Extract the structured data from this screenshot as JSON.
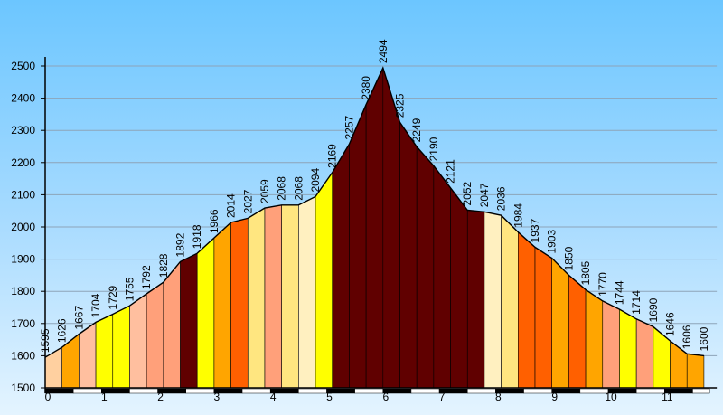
{
  "chart_data": {
    "type": "area",
    "title": "",
    "xlabel": "",
    "ylabel": "",
    "xlim": [
      0,
      11.8
    ],
    "ylim": [
      1500,
      2500
    ],
    "y_ticks": [
      1500,
      1600,
      1700,
      1800,
      1900,
      2000,
      2100,
      2200,
      2300,
      2400,
      2500
    ],
    "x_ticks": [
      0,
      1,
      2,
      3,
      4,
      5,
      6,
      7,
      8,
      9,
      10,
      11
    ],
    "grid": true,
    "series": [
      {
        "x": [
          0,
          0.3,
          0.6,
          0.9,
          1.2,
          1.5,
          1.8,
          2.1,
          2.4,
          2.7,
          3.0,
          3.3,
          3.6,
          3.9,
          4.2,
          4.5,
          4.8,
          5.1,
          5.4,
          5.7,
          6.0,
          6.3,
          6.6,
          6.9,
          7.2,
          7.5,
          7.8,
          8.1,
          8.4,
          8.7,
          9.0,
          9.3,
          9.6,
          9.9,
          10.2,
          10.5,
          10.8,
          11.1,
          11.4,
          11.7
        ],
        "values": [
          1595,
          1626,
          1667,
          1704,
          1729,
          1755,
          1792,
          1828,
          1892,
          1918,
          1966,
          2014,
          2027,
          2059,
          2068,
          2068,
          2094,
          2169,
          2257,
          2380,
          2494,
          2325,
          2249,
          2190,
          2121,
          2052,
          2047,
          2036,
          1984,
          1937,
          1903,
          1850,
          1805,
          1770,
          1744,
          1714,
          1690,
          1646,
          1606,
          1600
        ]
      }
    ],
    "data_labels": [
      "1595",
      "1626",
      "1667",
      "1704",
      "1729",
      "1755",
      "1792",
      "1828",
      "1892",
      "1918",
      "1966",
      "2014",
      "2027",
      "2059",
      "2068",
      "2068",
      "2094",
      "2169",
      "2257",
      "2380",
      "2494",
      "2325",
      "2249",
      "2190",
      "2121",
      "2052",
      "2047",
      "2036",
      "1984",
      "1937",
      "1903",
      "1850",
      "1805",
      "1770",
      "1744",
      "1714",
      "1690",
      "1646",
      "1606",
      "1600"
    ],
    "segment_colors": [
      "#ffd0a0",
      "#ffa500",
      "#ffbf9f",
      "#ffff00",
      "#ffff00",
      "#ffbf9f",
      "#ffa07a",
      "#ffa07a",
      "#600000",
      "#ffff00",
      "#ffa500",
      "#ff6000",
      "#ffe680",
      "#ffa07a",
      "#ffe680",
      "#fff0c0",
      "#ffff00",
      "#600000",
      "#600000",
      "#600000",
      "#600000",
      "#600000",
      "#600000",
      "#600000",
      "#600000",
      "#600000",
      "#fff0c0",
      "#ffe680",
      "#ff6000",
      "#ff6000",
      "#ffa500",
      "#ff6000",
      "#ffa500",
      "#ffa07a",
      "#ffff00",
      "#ffa07a",
      "#ffff00",
      "#ffa500",
      "#ffa500"
    ],
    "colors": {
      "axis": "#000000",
      "grid": "#8da4b8",
      "outline": "#000000"
    },
    "km_bar_colors": [
      "#000000",
      "#ffffff"
    ]
  }
}
